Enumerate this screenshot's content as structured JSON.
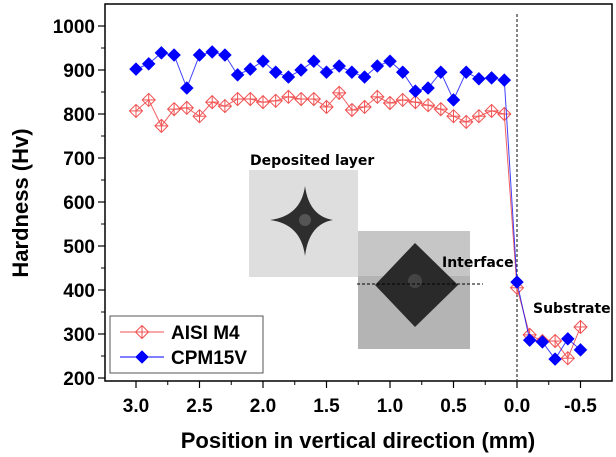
{
  "chart_data": {
    "type": "line",
    "title": "",
    "xlabel": "Position in vertical direction (mm)",
    "ylabel": "Hardness (Hv)",
    "xlim": [
      3.3,
      -0.75
    ],
    "ylim": [
      193,
      1040
    ],
    "x_reversed": true,
    "x_ticks": [
      3.0,
      2.5,
      2.0,
      1.5,
      1.0,
      0.5,
      0.0,
      -0.5
    ],
    "x_tick_labels": [
      "3.0",
      "2.5",
      "2.0",
      "1.5",
      "1.0",
      "0.5",
      "0.0",
      "-0.5"
    ],
    "y_ticks": [
      200,
      300,
      400,
      500,
      600,
      700,
      800,
      900,
      1000
    ],
    "y_tick_labels": [
      "200",
      "300",
      "400",
      "500",
      "600",
      "700",
      "800",
      "900",
      "1000"
    ],
    "grid": false,
    "legend_position": "bottom-left",
    "interface_line_x": 0.0,
    "series": [
      {
        "name": "AISI M4",
        "color": "#f05050",
        "marker": "open-diamond-cross",
        "x": [
          3.0,
          2.9,
          2.8,
          2.7,
          2.6,
          2.5,
          2.4,
          2.3,
          2.2,
          2.1,
          2.0,
          1.9,
          1.8,
          1.7,
          1.6,
          1.5,
          1.4,
          1.3,
          1.2,
          1.1,
          1.0,
          0.9,
          0.8,
          0.7,
          0.6,
          0.5,
          0.4,
          0.3,
          0.2,
          0.1,
          0.0,
          -0.1,
          -0.2,
          -0.3,
          -0.4,
          -0.5
        ],
        "values": [
          807,
          832,
          773,
          811,
          814,
          795,
          827,
          818,
          834,
          834,
          827,
          830,
          839,
          834,
          834,
          816,
          848,
          809,
          816,
          839,
          825,
          832,
          827,
          820,
          811,
          795,
          782,
          795,
          807,
          800,
          405,
          298,
          284,
          284,
          245,
          316
        ]
      },
      {
        "name": "CPM15V",
        "color": "#0000ff",
        "marker": "filled-diamond",
        "x": [
          3.0,
          2.9,
          2.8,
          2.7,
          2.6,
          2.5,
          2.4,
          2.3,
          2.2,
          2.1,
          2.0,
          1.9,
          1.8,
          1.7,
          1.6,
          1.5,
          1.4,
          1.3,
          1.2,
          1.1,
          1.0,
          0.9,
          0.8,
          0.7,
          0.6,
          0.5,
          0.4,
          0.3,
          0.2,
          0.1,
          0.0,
          -0.1,
          -0.2,
          -0.3,
          -0.4,
          -0.5
        ],
        "values": [
          902,
          914,
          939,
          934,
          859,
          934,
          941,
          934,
          889,
          902,
          920,
          895,
          884,
          900,
          920,
          895,
          909,
          895,
          884,
          909,
          920,
          895,
          852,
          859,
          895,
          832,
          895,
          880,
          882,
          877,
          418,
          286,
          282,
          243,
          289,
          264
        ]
      }
    ],
    "annotations": [
      {
        "text": "Deposited layer",
        "x": 2.12,
        "y": 980,
        "kind": "inset-label"
      },
      {
        "text": "Interface",
        "x": 0.2,
        "y": 365,
        "kind": "inset-label"
      },
      {
        "text": "Substrate",
        "x": -0.45,
        "y": 340,
        "kind": "region-label"
      }
    ],
    "insets": [
      {
        "name": "Deposited layer micrograph",
        "description": "Vickers indentation, concave diamond on light background"
      },
      {
        "name": "Interface micrograph",
        "description": "Vickers indentation, dark diamond crossing dashed interface line"
      }
    ]
  },
  "labels": {
    "deposited": "Deposited layer",
    "interface": "Interface",
    "substrate": "Substrate"
  }
}
